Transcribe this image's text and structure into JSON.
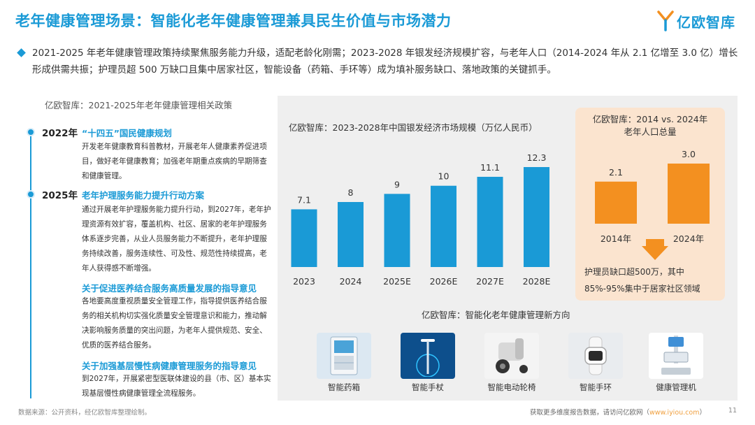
{
  "header": {
    "title": "老年健康管理场景：智能化老年健康管理兼具民生价值与市场潜力",
    "logo_text": "亿欧智库"
  },
  "summary": "2021-2025 年老年健康管理政策持续聚焦服务能力升级，适配老龄化刚需；2023-2028 年银发经济规模扩容，与老年人口（2014-2024 年从 2.1 亿增至 3.0 亿）增长形成供需共振；护理员超 500 万缺口且集中居家社区，智能设备（药箱、手环等）成为填补服务缺口、落地政策的关键抓手。",
  "policies": {
    "heading": "亿欧智库：2021-2025年老年健康管理相关政策",
    "items": [
      {
        "year": "2022年",
        "title": "“十四五”国民健康规划",
        "text": "开发老年健康教育科普教材，开展老年人健康素养促进项目，做好老年健康教育；加强老年期重点疾病的早期筛查和健康管理。"
      },
      {
        "year": "2025年",
        "title": "老年护理服务能力提升行动方案",
        "text": "通过开展老年护理服务能力提升行动，到2027年，老年护理资源有效扩容，覆盖机构、社区、居家的老年护理服务体系逐步完善，从业人员服务能力不断提升，老年护理服务持续改善，服务连续性、可及性、规范性持续提高，老年人获得感不断增强。"
      },
      {
        "year": "",
        "title": "关于促进医养结合服务高质量发展的指导意见",
        "text": "各地要高度重视质量安全管理工作，指导提供医养结合服务的相关机构切实强化质量安全管理意识和能力，推动解决影响服务质量的突出问题，为老年人提供规范、安全、优质的医养结合服务。"
      },
      {
        "year": "",
        "title": "关于加强基层慢性病健康管理服务的指导意见",
        "text": "到2027年，开展紧密型医联体建设的县（市、区）基本实现基层慢性病健康管理全流程服务。"
      }
    ]
  },
  "market": {
    "heading": "亿欧智库：2023-2028年中国银发经济市场规模（万亿人民币）"
  },
  "population": {
    "heading_line1": "亿欧智库：2014 vs. 2024年",
    "heading_line2": "老年人口总量",
    "shortage": "护理员缺口超500万，其中85%-95%集中于居家社区领域"
  },
  "directions": {
    "heading": "亿欧智库：智能化老年健康管理新方向",
    "devices": [
      {
        "label": "智能药箱",
        "icon": "medicine-cabinet-icon"
      },
      {
        "label": "智能手杖",
        "icon": "smart-cane-icon"
      },
      {
        "label": "智能电动轮椅",
        "icon": "wheelchair-icon"
      },
      {
        "label": "智能手环",
        "icon": "smart-band-icon"
      },
      {
        "label": "健康管理机",
        "icon": "health-kiosk-icon"
      }
    ]
  },
  "footer": {
    "source": "数据来源：公开资料，经亿欧智库整理绘制。",
    "cta": "获取更多维度报告数据，请访问亿欧网（",
    "link": "www.iyiou.com",
    "cta_end": "）",
    "page": "11"
  },
  "colors": {
    "primary": "#1a9ad6",
    "orange": "#f39020",
    "peach": "#fbe4cf",
    "panel": "#efefef"
  },
  "chart_data": [
    {
      "type": "bar",
      "title": "亿欧智库：2023-2028年中国银发经济市场规模（万亿人民币）",
      "categories": [
        "2023",
        "2024",
        "2025E",
        "2026E",
        "2027E",
        "2028E"
      ],
      "values": [
        7.1,
        8,
        9,
        10,
        11.1,
        12.3
      ],
      "value_labels": [
        "7.1",
        "8",
        "9",
        "10",
        "11.1",
        "12.3"
      ],
      "ylim": [
        0,
        12.3
      ],
      "grid": false,
      "color": "#1a9ad6"
    },
    {
      "type": "bar",
      "title": "亿欧智库：2014 vs. 2024年老年人口总量",
      "categories": [
        "2014年",
        "2024年"
      ],
      "values": [
        2.1,
        3.0
      ],
      "value_labels": [
        "2.1",
        "3.0"
      ],
      "ylim": [
        0,
        3.0
      ],
      "grid": false,
      "color": "#f39020"
    }
  ]
}
